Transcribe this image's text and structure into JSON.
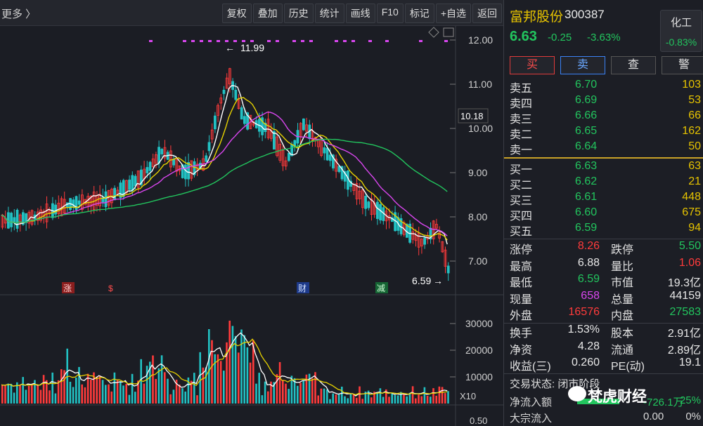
{
  "toolbar": {
    "more_label": "更多",
    "buttons": [
      "复权",
      "叠加",
      "历史",
      "统计",
      "画线",
      "F10",
      "标记",
      "+自选",
      "返回"
    ]
  },
  "stock": {
    "name": "富邦股份",
    "code": "300387",
    "price": "6.63",
    "change": "-0.25",
    "change_pct": "-3.63%",
    "sector_name": "化工",
    "sector_pct": "-0.83%"
  },
  "actions": [
    "买",
    "卖",
    "查",
    "警"
  ],
  "order_book": {
    "asks": [
      {
        "label": "卖五",
        "price": "6.70",
        "vol": "103"
      },
      {
        "label": "卖四",
        "price": "6.69",
        "vol": "53"
      },
      {
        "label": "卖三",
        "price": "6.66",
        "vol": "66"
      },
      {
        "label": "卖二",
        "price": "6.65",
        "vol": "162"
      },
      {
        "label": "卖一",
        "price": "6.64",
        "vol": "50"
      }
    ],
    "bids": [
      {
        "label": "买一",
        "price": "6.63",
        "vol": "63"
      },
      {
        "label": "买二",
        "price": "6.62",
        "vol": "21"
      },
      {
        "label": "买三",
        "price": "6.61",
        "vol": "448"
      },
      {
        "label": "买四",
        "price": "6.60",
        "vol": "675"
      },
      {
        "label": "买五",
        "price": "6.59",
        "vol": "94"
      }
    ]
  },
  "stats": [
    {
      "k1": "涨停",
      "v1": "8.26",
      "c1": "red",
      "k2": "跌停",
      "v2": "5.50",
      "c2": "green"
    },
    {
      "k1": "最高",
      "v1": "6.88",
      "c1": "white",
      "k2": "量比",
      "v2": "1.06",
      "c2": "red"
    },
    {
      "k1": "最低",
      "v1": "6.59",
      "c1": "green",
      "k2": "市值",
      "v2": "19.3亿",
      "c2": "white"
    },
    {
      "k1": "现量",
      "v1": "658",
      "c1": "purple",
      "k2": "总量",
      "v2": "44159",
      "c2": "white"
    },
    {
      "k1": "外盘",
      "v1": "16576",
      "c1": "red",
      "k2": "内盘",
      "v2": "27583",
      "c2": "green"
    }
  ],
  "fundamentals": [
    {
      "k1": "换手",
      "v1": "1.53%",
      "k2": "股本",
      "v2": "2.91亿"
    },
    {
      "k1": "净资",
      "v1": "4.28",
      "k2": "流通",
      "v2": "2.89亿"
    },
    {
      "k1": "收益(三)",
      "v1": "0.260",
      "k2": "PE(动)",
      "v2": "19.1"
    }
  ],
  "trade_state": "交易状态: 闭市阶段",
  "flows": [
    {
      "label": "净流入额",
      "value": "-726.1万",
      "pct": "25%"
    },
    {
      "label": "大宗流入",
      "value": "0.00",
      "pct": "0%"
    }
  ],
  "watermark": "梵虎财经",
  "chart": {
    "price_ticks": [
      "12.00",
      "11.00",
      "10.00",
      "9.00",
      "8.00",
      "7.00"
    ],
    "current_marker": "10.18",
    "high_label": "11.99",
    "low_label": "6.59",
    "event_tags": [
      "涨",
      "$",
      "财",
      "减"
    ],
    "vol_ticks": [
      "30000",
      "20000",
      "10000"
    ],
    "vol_unit": "X10",
    "bottom_tick": "0.50"
  },
  "colors": {
    "up": "#ff3b3b",
    "down": "#22c1c3",
    "ma5": "#ffffff",
    "ma10": "#e6d200",
    "ma20": "#d946ef",
    "ma60": "#22c55e"
  }
}
